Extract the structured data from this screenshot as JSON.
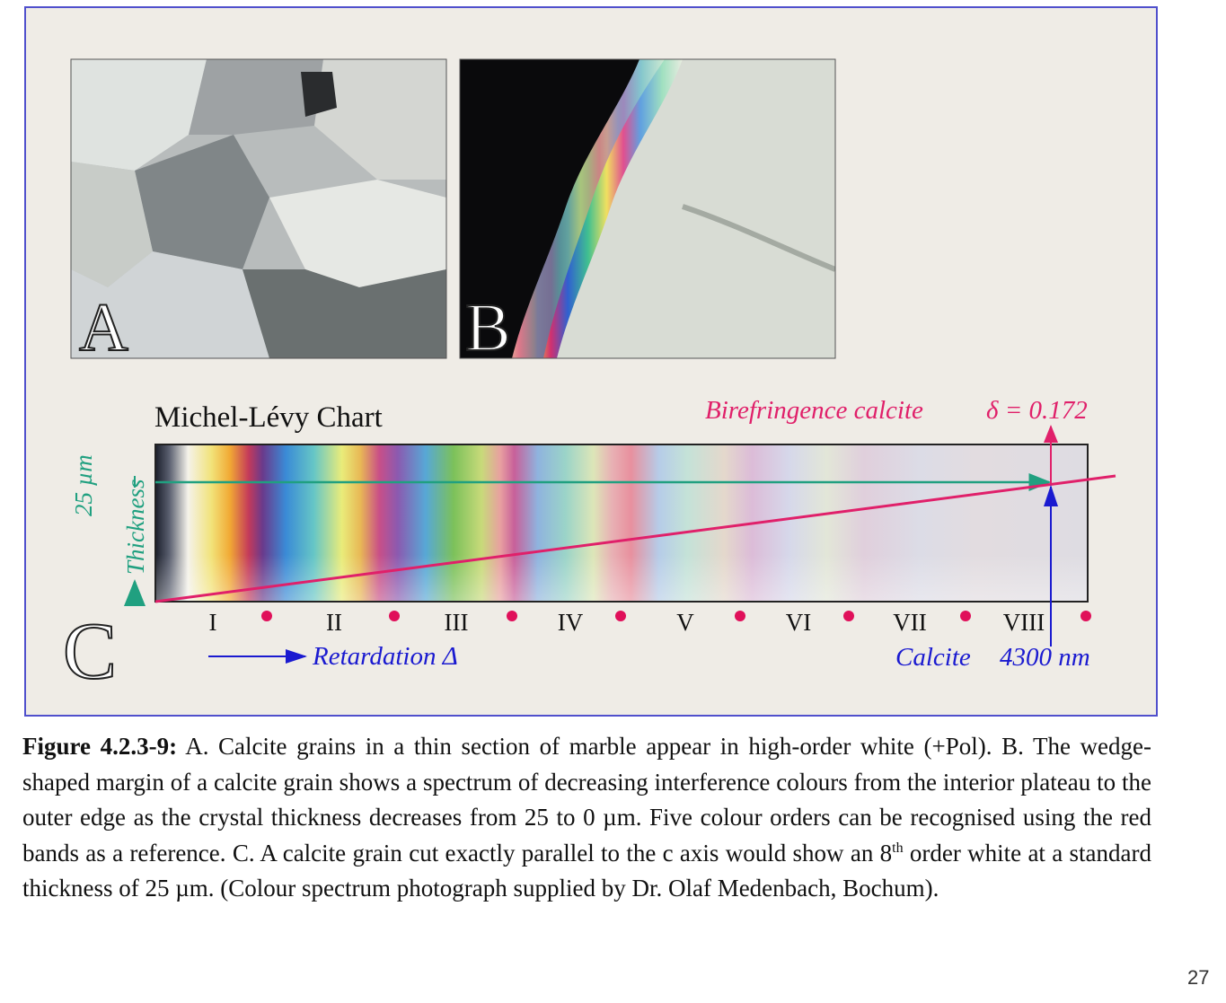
{
  "panels": {
    "a": {
      "label": "A"
    },
    "b": {
      "label": "B"
    }
  },
  "chart": {
    "title": "Michel-Lévy Chart",
    "label": "C",
    "birefringence": "Birefringence calcite",
    "delta": "δ = 0.172",
    "thickness_value": "25 µm",
    "thickness": "Thickness",
    "orders": [
      "I",
      "II",
      "III",
      "IV",
      "V",
      "VI",
      "VII",
      "VIII"
    ],
    "retardation": "Retardation Δ",
    "calcite": "Calcite",
    "retardation_value": "4300 nm"
  },
  "caption": {
    "lead": "Figure 4.2.3-9:",
    "text": "A. Calcite grains in a thin section of marble appear in high-order white (+Pol). B. The wedge-shaped margin of a calcite grain shows a spectrum of decreasing interference colours from the interior plateau to the outer edge as the crystal thickness decreases from 25 to 0 µm. Five colour orders can be recognised using the red bands as a reference. C. A calcite grain cut exactly parallel to the c axis would show an 8",
    "sup": "th",
    "text_end": "order white at a standard thickness of 25 µm. (Colour spectrum photograph supplied by Dr. Olaf Medenbach, Bochum)."
  },
  "page_number": "27"
}
